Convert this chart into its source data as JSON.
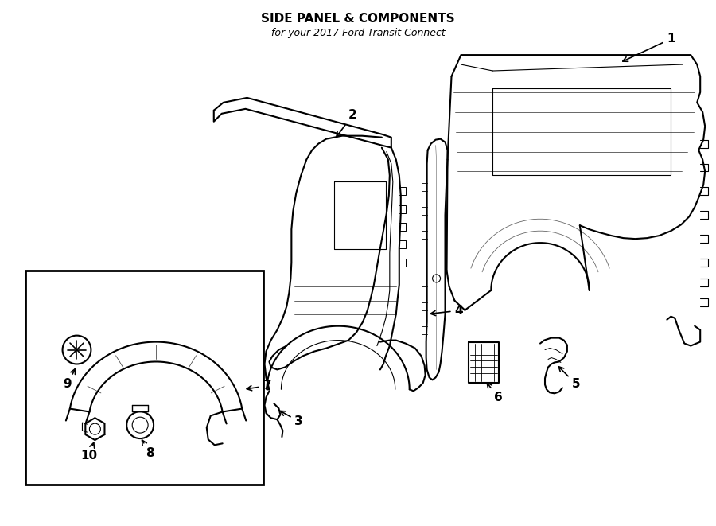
{
  "title": "SIDE PANEL & COMPONENTS",
  "subtitle": "for your 2017 Ford Transit Connect",
  "background_color": "#ffffff",
  "line_color": "#000000",
  "title_fontsize": 11,
  "subtitle_fontsize": 9,
  "label_fontsize": 11,
  "figsize": [
    9.0,
    6.61
  ],
  "dpi": 100
}
